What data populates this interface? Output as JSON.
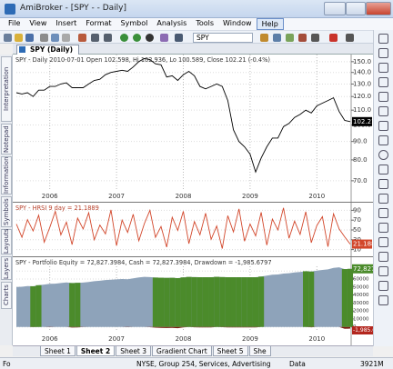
{
  "window": {
    "title": "AmiBroker - [SPY - - Daily]"
  },
  "menu": [
    "File",
    "View",
    "Insert",
    "Format",
    "Symbol",
    "Analysis",
    "Tools",
    "Window",
    "Help"
  ],
  "toolbar": {
    "symbol": "SPY"
  },
  "document_tab": "SPY (Daily)",
  "side_tabs": [
    "Interpretation",
    "Notepad",
    "Information",
    "Symbols",
    "Layouts",
    "Layers",
    "Charts"
  ],
  "chart_data": [
    {
      "type": "line",
      "title": "SPY - Daily 2010-07-01 Open 102.598, Hi 102.936, Lo 100.589, Close 102.21 (-0.4%)",
      "log_scale": true,
      "grid": true,
      "series": [
        {
          "color": "#000000",
          "values": [
            123,
            122,
            123,
            120,
            125,
            125,
            128,
            128,
            130,
            131,
            127,
            127,
            127,
            130,
            133,
            134,
            138,
            140,
            141,
            142,
            141,
            145,
            150,
            153,
            152,
            148,
            147,
            136,
            137,
            133,
            138,
            141,
            137,
            128,
            126,
            128,
            130,
            128,
            117,
            97,
            90,
            87,
            83,
            74,
            81,
            87,
            92,
            92,
            99,
            101,
            105,
            107,
            110,
            108,
            113,
            115,
            117,
            119,
            109,
            103,
            102.21
          ]
        }
      ],
      "ylim": [
        66,
        157
      ],
      "yticks": [
        {
          "value": 150,
          "label": "150.0"
        },
        {
          "value": 140,
          "label": "140.0"
        },
        {
          "value": 130,
          "label": "130.0"
        },
        {
          "value": 120,
          "label": "120.0"
        },
        {
          "value": 110,
          "label": "110.0"
        },
        {
          "value": 100,
          "label": "100.0"
        },
        {
          "value": 90,
          "label": "90.0"
        },
        {
          "value": 80,
          "label": "80.0"
        },
        {
          "value": 70,
          "label": "70.0"
        }
      ],
      "xticks": [
        {
          "value": 6,
          "label": "2006"
        },
        {
          "value": 18,
          "label": "2007"
        },
        {
          "value": 30,
          "label": "2008"
        },
        {
          "value": 42,
          "label": "2009"
        },
        {
          "value": 54,
          "label": "2010"
        }
      ]
    },
    {
      "type": "line",
      "title": "SPY - HRSI 9 day = 21.1889",
      "grid": true,
      "series": [
        {
          "color": "#d2462a",
          "values": [
            62,
            35,
            71,
            48,
            80,
            25,
            55,
            88,
            40,
            66,
            20,
            74,
            52,
            85,
            30,
            60,
            42,
            91,
            18,
            70,
            45,
            82,
            28,
            63,
            90,
            35,
            57,
            15,
            76,
            49,
            88,
            22,
            67,
            40,
            84,
            31,
            58,
            12,
            79,
            46,
            93,
            27,
            62,
            38,
            86,
            19,
            72,
            50,
            95,
            33,
            68,
            41,
            87,
            24,
            59,
            77,
            16,
            83,
            52,
            36,
            21.1889
          ]
        }
      ],
      "ylim": [
        0,
        100
      ],
      "yticks": [
        10,
        30,
        50,
        70,
        90
      ]
    },
    {
      "type": "area",
      "title": "SPY - Portfolio Equity = 72,827.3984, Cash = 72,827.3984, Drawdown = -1,985.6797",
      "grid": true,
      "series": [
        {
          "color": "#8ea3ba",
          "values": [
            50000,
            50400,
            51200,
            51000,
            52300,
            53100,
            54000,
            54200,
            55100,
            55800,
            55000,
            55300,
            55600,
            56400,
            57300,
            57900,
            58800,
            59300,
            59600,
            60100,
            59800,
            60900,
            62000,
            62800,
            62500,
            61900,
            61700,
            61500,
            61600,
            61200,
            62100,
            62700,
            62400,
            62300,
            62300,
            62300,
            62800,
            62500,
            62300,
            62300,
            62300,
            62300,
            62300,
            62300,
            63100,
            64400,
            65500,
            65700,
            66900,
            67400,
            68300,
            68900,
            69800,
            69400,
            70600,
            71400,
            72100,
            73900,
            74800,
            72500,
            72827.3984
          ]
        },
        {
          "color": "#4b8b2b",
          "values": [
            0,
            0,
            0,
            51000,
            52300,
            0,
            0,
            0,
            0,
            0,
            55000,
            55300,
            0,
            0,
            0,
            0,
            0,
            0,
            0,
            0,
            0,
            0,
            0,
            0,
            0,
            61900,
            61700,
            61500,
            61600,
            61200,
            62100,
            62700,
            62400,
            62300,
            62300,
            62300,
            62800,
            62500,
            62300,
            62300,
            62300,
            62300,
            62300,
            62300,
            63100,
            0,
            0,
            0,
            0,
            0,
            0,
            0,
            69800,
            69400,
            0,
            0,
            0,
            0,
            0,
            72500,
            72827.3984
          ]
        },
        {
          "color": "#7a1a10",
          "values": [
            0,
            0,
            0,
            -200,
            0,
            0,
            -300,
            0,
            0,
            0,
            -800,
            -500,
            -200,
            0,
            0,
            0,
            0,
            0,
            0,
            0,
            -300,
            0,
            0,
            0,
            -300,
            -900,
            -1100,
            -1300,
            -1200,
            -1600,
            -700,
            -100,
            -400,
            -500,
            -500,
            -500,
            0,
            -300,
            -500,
            -500,
            -500,
            -500,
            -500,
            -500,
            0,
            0,
            0,
            0,
            0,
            0,
            0,
            0,
            0,
            -400,
            0,
            0,
            0,
            0,
            0,
            -2300,
            -1985.6797
          ]
        }
      ],
      "last_label": "72,827.4",
      "drawdown_label": "-1,985.68",
      "ylim": [
        -6000,
        76000
      ],
      "yticks": [
        70000,
        60000,
        50000,
        40000,
        30000,
        20000,
        10000,
        0
      ],
      "xticks": [
        {
          "value": 6,
          "label": "2006"
        },
        {
          "value": 18,
          "label": "2007"
        },
        {
          "value": 30,
          "label": "2008"
        },
        {
          "value": 42,
          "label": "2009"
        },
        {
          "value": 54,
          "label": "2010"
        }
      ]
    }
  ],
  "sheet_tabs": [
    "Sheet 1",
    "Sheet 2",
    "Sheet 3",
    "Gradient Chart",
    "Sheet 5",
    "She"
  ],
  "status_bar": [
    "Fo",
    "NYSE, Group 254, Services, Advertising",
    "Data",
    "3921M"
  ]
}
